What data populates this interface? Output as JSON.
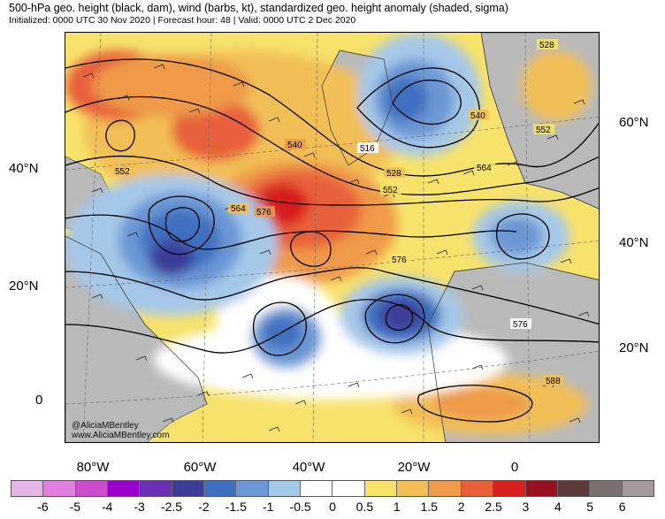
{
  "header": {
    "title": "500-hPa geo. height (black, dam), wind (barbs, kt), standardized geo. height anomaly (shaded, sigma)",
    "subtitle": "Initialized: 0000 UTC 30 Nov 2020 | Forecast hour: 48 | Valid: 0000 UTC 2 Dec 2020"
  },
  "map": {
    "left_lat_labels": [
      "40°N",
      "20°N",
      "0"
    ],
    "right_lat_labels": [
      "60°N",
      "40°N",
      "20°N"
    ],
    "lon_labels": [
      "80°W",
      "60°W",
      "40°W",
      "20°W",
      "0"
    ],
    "contour_labels": [
      "528",
      "540",
      "552",
      "516",
      "528",
      "540",
      "552",
      "564",
      "552",
      "564",
      "576",
      "576",
      "576",
      "588"
    ],
    "credit": [
      "@AliciaMBentley",
      "www.AliciaMBentley.com"
    ]
  },
  "colorbar": {
    "ticks": [
      "-6",
      "-5",
      "-4",
      "-3",
      "-2.5",
      "-2",
      "-1.5",
      "-1",
      "-0.5",
      "0",
      "0.5",
      "1",
      "1.5",
      "2",
      "2.5",
      "3",
      "4",
      "5",
      "6"
    ],
    "colors": [
      "#e6b3e6",
      "#e07fe0",
      "#cc4dcc",
      "#9900cc",
      "#6a2fb3",
      "#3d3d99",
      "#3f6fbf",
      "#6b97d4",
      "#a6c8e8",
      "#ffffff",
      "#ffffff",
      "#f7e26b",
      "#f2bf57",
      "#ee9a4a",
      "#e8603a",
      "#d61f1f",
      "#991020",
      "#5c3a3a",
      "#7a6f6f",
      "#a39a9a"
    ]
  }
}
